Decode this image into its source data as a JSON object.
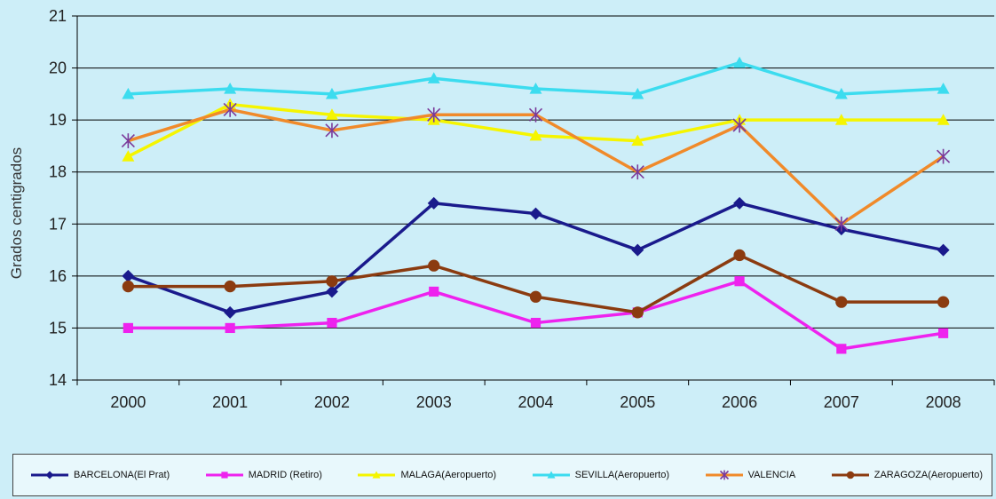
{
  "chart_data": {
    "type": "line",
    "title": "",
    "xlabel": "",
    "ylabel": "Grados centigrados",
    "categories": [
      "2000",
      "2001",
      "2002",
      "2003",
      "2004",
      "2005",
      "2006",
      "2007",
      "2008"
    ],
    "ylim": [
      14,
      21
    ],
    "yticks": [
      14,
      15,
      16,
      17,
      18,
      19,
      20,
      21
    ],
    "grid": true,
    "legend_position": "bottom",
    "series": [
      {
        "name": "BARCELONA(El Prat)",
        "color": "#1a1a8c",
        "marker": "diamond",
        "values": [
          16.0,
          15.3,
          15.7,
          17.4,
          17.2,
          16.5,
          17.4,
          16.9,
          16.5
        ]
      },
      {
        "name": "MADRID (Retiro)",
        "color": "#ee22ee",
        "marker": "square",
        "values": [
          15.0,
          15.0,
          15.1,
          15.7,
          15.1,
          15.3,
          15.9,
          14.6,
          14.9
        ]
      },
      {
        "name": "MALAGA(Aeropuerto)",
        "color": "#f5f500",
        "marker": "triangle",
        "values": [
          18.3,
          19.3,
          19.1,
          19.0,
          18.7,
          18.6,
          19.0,
          19.0,
          19.0
        ]
      },
      {
        "name": "SEVILLA(Aeropuerto)",
        "color": "#3cdcef",
        "marker": "triangle",
        "values": [
          19.5,
          19.6,
          19.5,
          19.8,
          19.6,
          19.5,
          20.1,
          19.5,
          19.6
        ]
      },
      {
        "name": "VALENCIA",
        "color": "#f08a2a",
        "marker": "star",
        "marker_color": "#7a3a9a",
        "values": [
          18.6,
          19.2,
          18.8,
          19.1,
          19.1,
          18.0,
          18.9,
          17.0,
          18.3
        ]
      },
      {
        "name": "ZARAGOZA(Aeropuerto)",
        "color": "#8b3b10",
        "marker": "circle",
        "values": [
          15.8,
          15.8,
          15.9,
          16.2,
          15.6,
          15.3,
          16.4,
          15.5,
          15.5
        ]
      }
    ]
  }
}
